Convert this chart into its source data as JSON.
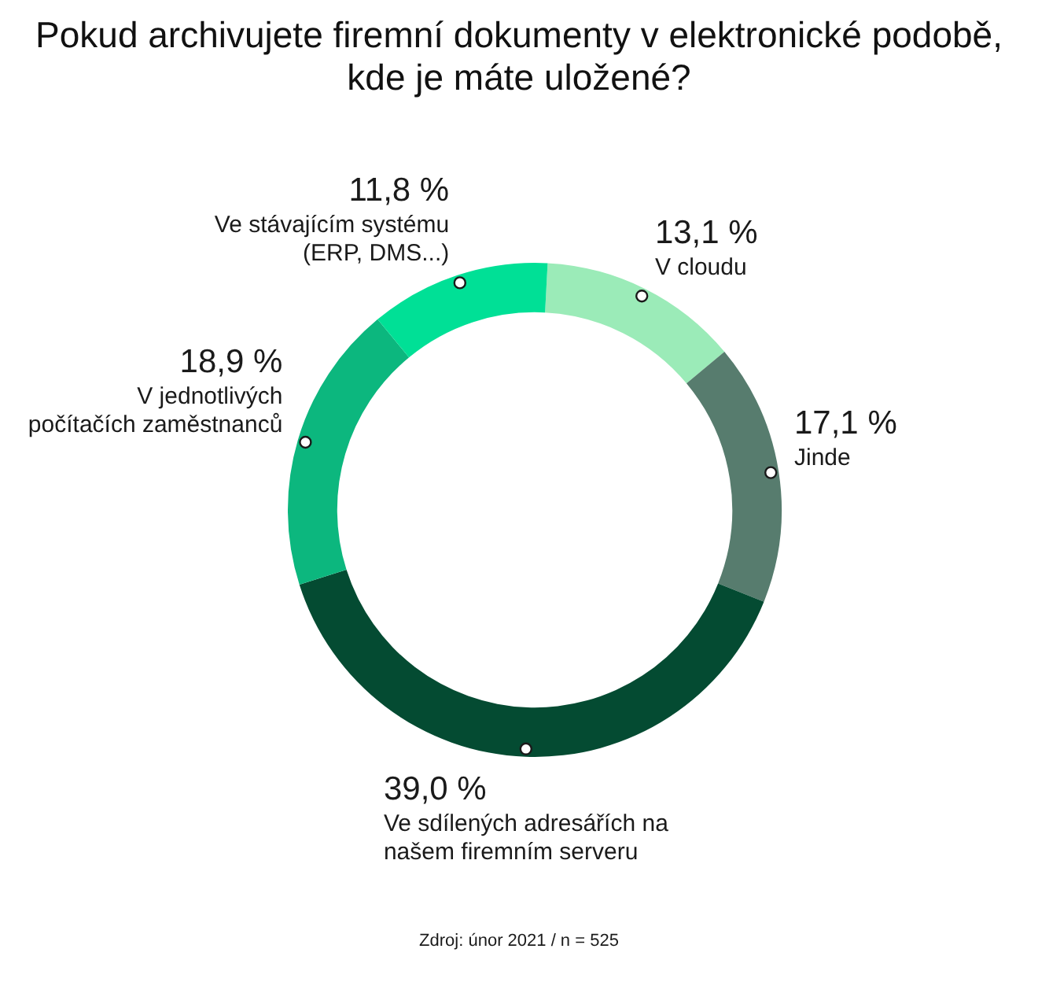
{
  "chart_data": {
    "type": "donut",
    "title": "Pokud archivujete firemní dokumenty v elektronické podobě, kde je máte uložené?",
    "categories": [
      "V cloudu",
      "Jinde",
      "Ve sdílených adresářích na našem firemním serveru",
      "V jednotlivých počítačích zaměstnanců",
      "Ve stávajícím systému (ERP, DMS...)"
    ],
    "values": [
      13.1,
      17.1,
      39.0,
      18.9,
      11.8
    ],
    "colors": [
      "#9bebb8",
      "#577c6e",
      "#044b32",
      "#0cb77e",
      "#00e096"
    ],
    "value_labels": [
      "13,1 %",
      "17,1 %",
      "39,0 %",
      "18,9 %",
      "11,8 %"
    ],
    "annotations": [
      "Zdroj: únor 2021 / n = 525"
    ]
  }
}
